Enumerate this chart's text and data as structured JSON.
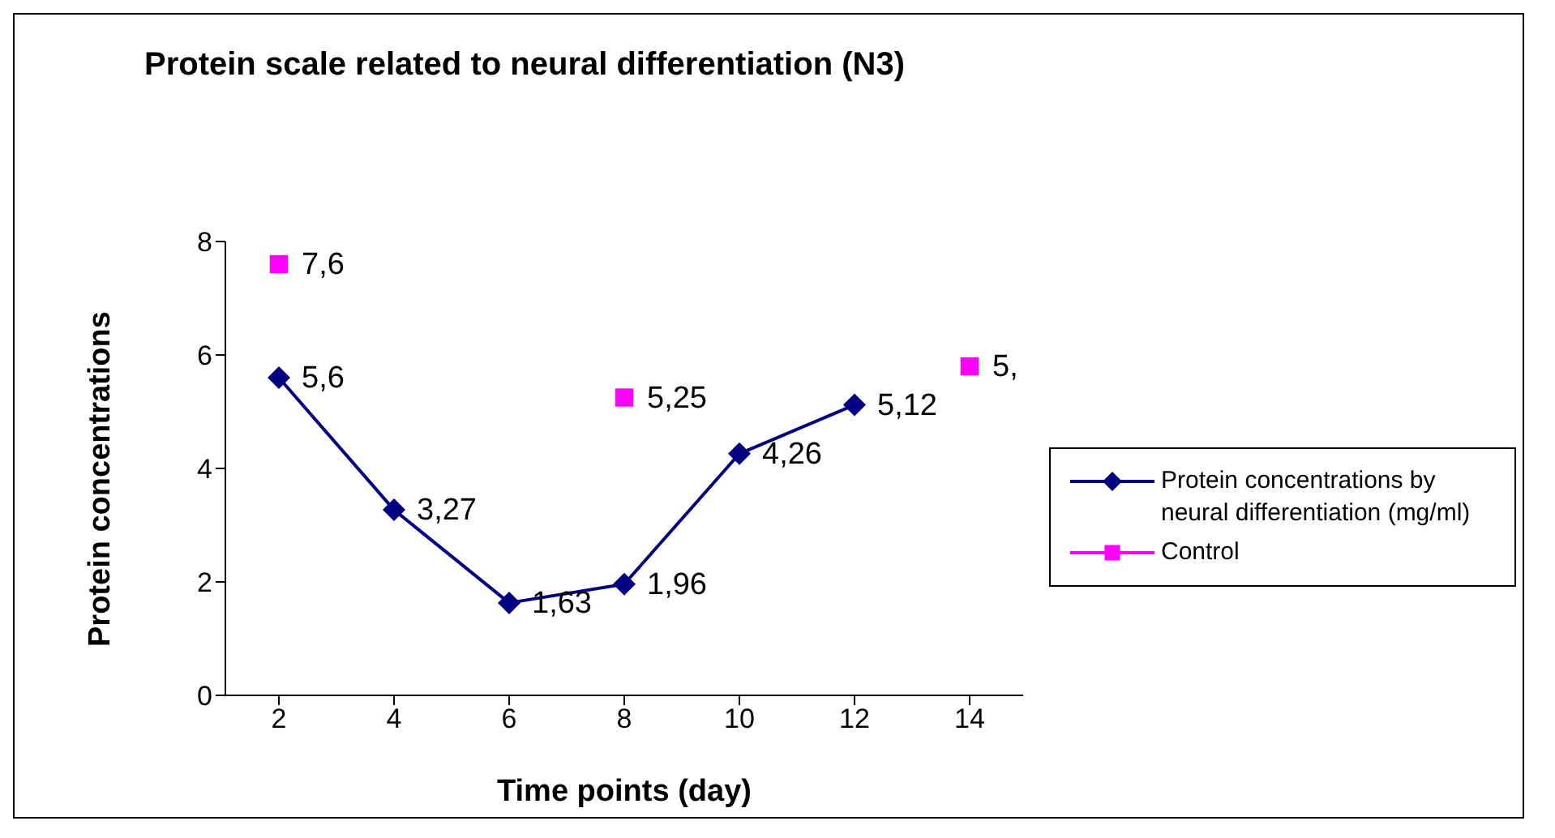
{
  "chart_data": {
    "type": "line",
    "title": "Protein scale related to neural differentiation (N3)",
    "xlabel": "Time points (day)",
    "ylabel": "Protein concentrations",
    "categories": [
      "2",
      "4",
      "6",
      "8",
      "10",
      "12",
      "14"
    ],
    "ylim": [
      0,
      8
    ],
    "yticks": [
      0,
      2,
      4,
      6,
      8
    ],
    "grid": false,
    "legend": "right",
    "series": [
      {
        "name": "Protein concentrations by neural differentiation (mg/ml)",
        "color": "#000080",
        "marker": "diamond",
        "values": [
          5.6,
          3.27,
          1.63,
          1.96,
          4.26,
          5.12,
          null
        ],
        "value_labels": [
          "5,6",
          "3,27",
          "1,63",
          "1,96",
          "4,26",
          "5,12",
          null
        ]
      },
      {
        "name": "Control",
        "type": "scatter",
        "color": "#ff00ff",
        "marker": "square",
        "values": [
          7.6,
          null,
          null,
          5.25,
          null,
          null,
          5.8
        ],
        "value_labels": [
          "7,6",
          null,
          null,
          "5,25",
          null,
          null,
          null
        ]
      }
    ],
    "annotations": [
      {
        "text": "5,",
        "x": "14",
        "y": 5.8
      }
    ]
  }
}
